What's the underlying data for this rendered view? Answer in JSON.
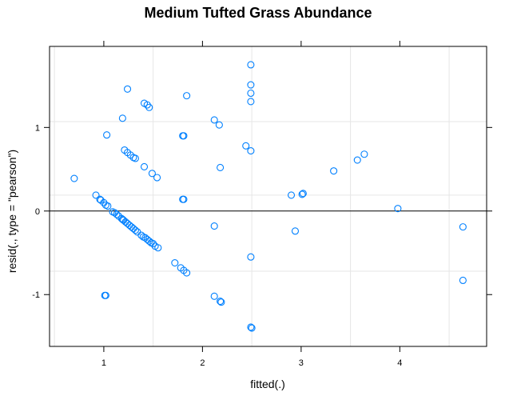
{
  "chart_data": {
    "type": "scatter",
    "title": "Medium Tufted Grass Abundance",
    "xlabel": "fitted(.)",
    "ylabel": "resid(., type = \"pearson\")",
    "xlim": [
      0.45,
      4.88
    ],
    "ylim": [
      -1.62,
      1.97
    ],
    "x_ticks": [
      1,
      2,
      3,
      4
    ],
    "y_ticks": [
      -1,
      0,
      1
    ],
    "grid": true,
    "reference_line_y": 0,
    "colors": {
      "point": "#0080ff",
      "zero_line": "#000000",
      "grid": "#e6e6e6",
      "frame": "#000000"
    },
    "points": [
      {
        "x": 0.7,
        "y": 0.39
      },
      {
        "x": 0.92,
        "y": 0.19
      },
      {
        "x": 0.96,
        "y": 0.14
      },
      {
        "x": 0.97,
        "y": 0.13
      },
      {
        "x": 1.0,
        "y": 0.1
      },
      {
        "x": 1.02,
        "y": 0.07
      },
      {
        "x": 1.04,
        "y": 0.06
      },
      {
        "x": 1.03,
        "y": 0.91
      },
      {
        "x": 1.01,
        "y": -1.01
      },
      {
        "x": 1.02,
        "y": -1.01
      },
      {
        "x": 1.09,
        "y": -0.01
      },
      {
        "x": 1.11,
        "y": -0.02
      },
      {
        "x": 1.13,
        "y": -0.04
      },
      {
        "x": 1.15,
        "y": -0.06
      },
      {
        "x": 1.18,
        "y": -0.09
      },
      {
        "x": 1.19,
        "y": -0.1
      },
      {
        "x": 1.2,
        "y": -0.11
      },
      {
        "x": 1.22,
        "y": -0.13
      },
      {
        "x": 1.24,
        "y": -0.15
      },
      {
        "x": 1.26,
        "y": -0.17
      },
      {
        "x": 1.28,
        "y": -0.19
      },
      {
        "x": 1.3,
        "y": -0.21
      },
      {
        "x": 1.32,
        "y": -0.23
      },
      {
        "x": 1.34,
        "y": -0.25
      },
      {
        "x": 1.38,
        "y": -0.29
      },
      {
        "x": 1.4,
        "y": -0.31
      },
      {
        "x": 1.42,
        "y": -0.32
      },
      {
        "x": 1.44,
        "y": -0.34
      },
      {
        "x": 1.46,
        "y": -0.36
      },
      {
        "x": 1.48,
        "y": -0.38
      },
      {
        "x": 1.5,
        "y": -0.39
      },
      {
        "x": 1.52,
        "y": -0.42
      },
      {
        "x": 1.55,
        "y": -0.44
      },
      {
        "x": 1.19,
        "y": 1.11
      },
      {
        "x": 1.21,
        "y": 0.73
      },
      {
        "x": 1.24,
        "y": 0.7
      },
      {
        "x": 1.27,
        "y": 0.67
      },
      {
        "x": 1.3,
        "y": 0.64
      },
      {
        "x": 1.32,
        "y": 0.63
      },
      {
        "x": 1.24,
        "y": 1.46
      },
      {
        "x": 1.41,
        "y": 1.29
      },
      {
        "x": 1.44,
        "y": 1.27
      },
      {
        "x": 1.46,
        "y": 1.24
      },
      {
        "x": 1.41,
        "y": 0.53
      },
      {
        "x": 1.49,
        "y": 0.45
      },
      {
        "x": 1.54,
        "y": 0.4
      },
      {
        "x": 1.72,
        "y": -0.62
      },
      {
        "x": 1.78,
        "y": -0.68
      },
      {
        "x": 1.81,
        "y": -0.71
      },
      {
        "x": 1.84,
        "y": -0.74
      },
      {
        "x": 1.8,
        "y": 0.9
      },
      {
        "x": 1.81,
        "y": 0.9
      },
      {
        "x": 1.84,
        "y": 1.38
      },
      {
        "x": 1.8,
        "y": 0.14
      },
      {
        "x": 1.81,
        "y": 0.14
      },
      {
        "x": 2.12,
        "y": 1.09
      },
      {
        "x": 2.17,
        "y": 1.03
      },
      {
        "x": 2.18,
        "y": 0.52
      },
      {
        "x": 2.12,
        "y": -0.18
      },
      {
        "x": 2.12,
        "y": -1.02
      },
      {
        "x": 2.18,
        "y": -1.08
      },
      {
        "x": 2.19,
        "y": -1.09
      },
      {
        "x": 2.44,
        "y": 0.78
      },
      {
        "x": 2.49,
        "y": 0.72
      },
      {
        "x": 2.49,
        "y": 1.75
      },
      {
        "x": 2.49,
        "y": 1.51
      },
      {
        "x": 2.49,
        "y": 1.41
      },
      {
        "x": 2.49,
        "y": 1.31
      },
      {
        "x": 2.49,
        "y": -0.55
      },
      {
        "x": 2.49,
        "y": -1.39
      },
      {
        "x": 2.5,
        "y": -1.4
      },
      {
        "x": 2.9,
        "y": 0.19
      },
      {
        "x": 3.01,
        "y": 0.2
      },
      {
        "x": 3.02,
        "y": 0.21
      },
      {
        "x": 2.94,
        "y": -0.24
      },
      {
        "x": 3.33,
        "y": 0.48
      },
      {
        "x": 3.57,
        "y": 0.61
      },
      {
        "x": 3.64,
        "y": 0.68
      },
      {
        "x": 3.98,
        "y": 0.03
      },
      {
        "x": 4.64,
        "y": -0.19
      },
      {
        "x": 4.64,
        "y": -0.83
      }
    ]
  }
}
